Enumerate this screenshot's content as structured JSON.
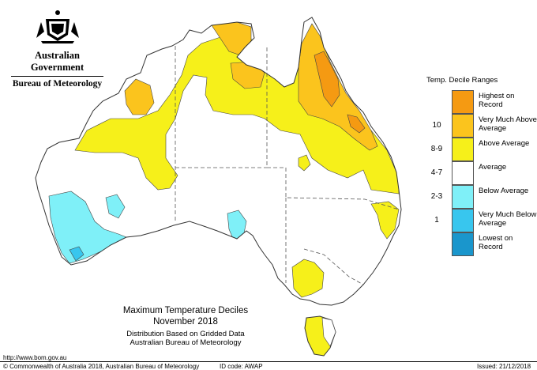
{
  "logo": {
    "emblem": "coat-of-arms-emblem",
    "government": "Australian Government",
    "bureau": "Bureau of Meteorology"
  },
  "legend": {
    "title": "Temp. Decile Ranges",
    "items": [
      {
        "code": "",
        "label": "Highest on Record",
        "color": "#f59a12"
      },
      {
        "code": "10",
        "label": "Very Much Above Average",
        "color": "#fbc41d"
      },
      {
        "code": "8-9",
        "label": "Above Average",
        "color": "#f6f01a"
      },
      {
        "code": "4-7",
        "label": "Average",
        "color": "#ffffff"
      },
      {
        "code": "2-3",
        "label": "Below Average",
        "color": "#7ff0f8"
      },
      {
        "code": "1",
        "label": "Very Much Below Average",
        "color": "#38c6ee"
      },
      {
        "code": "",
        "label": "Lowest on Record",
        "color": "#1a96cc"
      }
    ]
  },
  "map": {
    "title": "Maximum Temperature Deciles",
    "period": "November 2018",
    "method": "Distribution Based on Gridded Data",
    "source": "Australian Bureau of Meteorology"
  },
  "footer": {
    "url": "http://www.bom.gov.au",
    "copyright": "© Commonwealth of Australia 2018, Australian Bureau of Meteorology",
    "id_code": "ID code: AWAP",
    "issued": "Issued: 21/12/2018"
  }
}
